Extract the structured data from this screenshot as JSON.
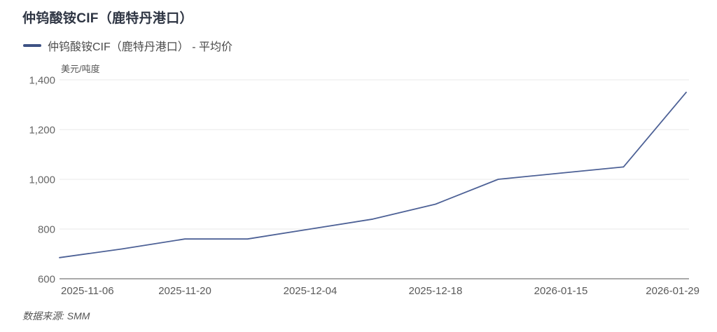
{
  "chart_data": {
    "type": "line",
    "title": "仲钨酸铵CIF（鹿特丹港口）",
    "legend": "仲钨酸铵CIF（鹿特丹港口） - 平均价",
    "ylabel": "美元/吨度",
    "ylim": [
      600,
      1400
    ],
    "y_ticks": [
      600,
      800,
      1000,
      1200,
      1400
    ],
    "num_points": 11,
    "values": [
      685,
      720,
      760,
      760,
      800,
      840,
      900,
      1000,
      1025,
      1050,
      1350
    ],
    "x_tick_labels": [
      "2025-11-06",
      "2025-11-20",
      "2025-12-04",
      "2025-12-18",
      "2026-01-15",
      "2026-01-29"
    ],
    "x_tick_indices": [
      0,
      2,
      4,
      6,
      8,
      10
    ],
    "grid": true,
    "legend_position": "top-left",
    "source": "数据来源: SMM",
    "colors": {
      "line": "#4d6196",
      "legend_marker": "#3e5284",
      "grid": "#e9e9e9",
      "axis_line": "#a9a9a9",
      "y_tick_text": "#666666",
      "x_tick_text": "#595959",
      "title_text": "#2e3543"
    }
  }
}
